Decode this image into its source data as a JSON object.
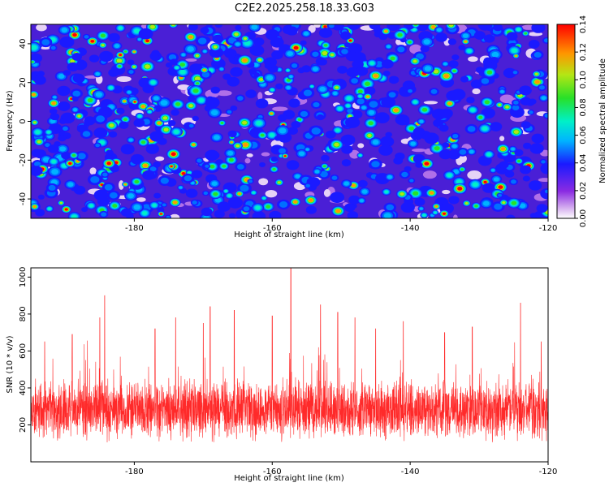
{
  "title": "C2E2.2025.258.18.33.G03",
  "colors": {
    "snr_line": "#ff2a2a"
  },
  "chart_data": [
    {
      "type": "heatmap",
      "xlabel": "Height of straight line (km)",
      "ylabel": "Frequency (Hz)",
      "xlim": [
        -195,
        -120
      ],
      "ylim": [
        -50,
        50
      ],
      "xticks": [
        -180,
        -160,
        -140,
        -120
      ],
      "yticks": [
        -40,
        -20,
        0,
        20,
        40
      ],
      "xtick_labels": [
        "-180",
        "-160",
        "-140",
        "-120"
      ],
      "ytick_labels": [
        "-40",
        "-20",
        "0",
        "20",
        "40"
      ],
      "colorbar": {
        "label": "Normalized spectral amplitude",
        "range": [
          0,
          0.14
        ],
        "ticks": [
          "0.00",
          "0.02",
          "0.04",
          "0.06",
          "0.08",
          "0.10",
          "0.12",
          "0.14"
        ]
      },
      "grid": false
    },
    {
      "type": "line",
      "xlabel": "Height of straight line (km)",
      "ylabel": "SNR (10 * v/v)",
      "xlim": [
        -195,
        -120
      ],
      "ylim": [
        0,
        1050
      ],
      "xticks": [
        -180,
        -160,
        -140,
        -120
      ],
      "yticks": [
        200,
        400,
        600,
        800,
        1000
      ],
      "xtick_labels": [
        "-180",
        "-160",
        "-140",
        "-120"
      ],
      "ytick_labels": [
        "200",
        "400",
        "600",
        "800",
        "1000"
      ],
      "series": [
        {
          "baseline": 280,
          "spread": 120,
          "peaks": [
            {
              "x": -193,
              "y": 650
            },
            {
              "x": -189,
              "y": 690
            },
            {
              "x": -185,
              "y": 780
            },
            {
              "x": -184.3,
              "y": 900
            },
            {
              "x": -177,
              "y": 720
            },
            {
              "x": -174,
              "y": 780
            },
            {
              "x": -170,
              "y": 750
            },
            {
              "x": -169,
              "y": 840
            },
            {
              "x": -165.5,
              "y": 820
            },
            {
              "x": -160,
              "y": 790
            },
            {
              "x": -157.3,
              "y": 1050
            },
            {
              "x": -153,
              "y": 850
            },
            {
              "x": -150.5,
              "y": 810
            },
            {
              "x": -148,
              "y": 780
            },
            {
              "x": -145,
              "y": 720
            },
            {
              "x": -141,
              "y": 760
            },
            {
              "x": -135,
              "y": 700
            },
            {
              "x": -131,
              "y": 730
            },
            {
              "x": -124,
              "y": 860
            },
            {
              "x": -121,
              "y": 650
            }
          ]
        }
      ],
      "grid": false
    }
  ]
}
